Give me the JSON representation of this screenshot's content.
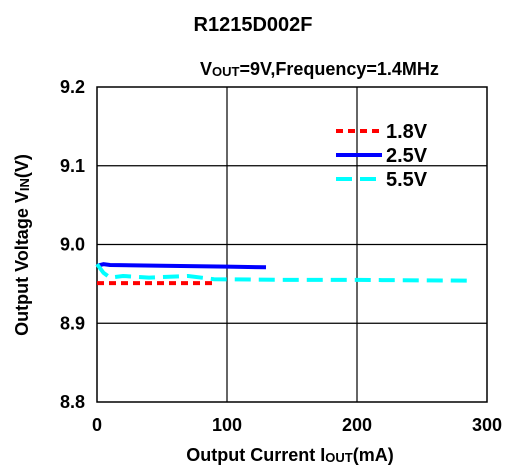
{
  "chart_data": {
    "type": "line",
    "title": "R1215D002F",
    "subtitle": {
      "v_main": "V",
      "v_sub": "OUT",
      "rest": "=9V,Frequency=1.4MHz"
    },
    "xlabel": {
      "prefix": "Output Current I",
      "sub": "OUT",
      "suffix": "(mA)"
    },
    "ylabel": {
      "prefix": "Output Voltage V",
      "sub": "IN",
      "suffix": "(V)"
    },
    "xlim": [
      0,
      300
    ],
    "ylim": [
      8.8,
      9.2
    ],
    "xticks": [
      "0",
      "100",
      "200",
      "300"
    ],
    "yticks": [
      "8.8",
      "8.9",
      "9.0",
      "9.1",
      "9.2"
    ],
    "grid": true,
    "legend_position": "top-right",
    "series": [
      {
        "name": "1.8V",
        "color": "#ff0000",
        "dash": "dotted",
        "x": [
          0,
          20,
          50,
          90
        ],
        "y": [
          8.951,
          8.951,
          8.951,
          8.951
        ]
      },
      {
        "name": "2.5V",
        "color": "#0000ff",
        "dash": "solid",
        "x": [
          0,
          5,
          10,
          50,
          100,
          130
        ],
        "y": [
          8.973,
          8.975,
          8.974,
          8.973,
          8.972,
          8.971
        ]
      },
      {
        "name": "5.5V",
        "color": "#00ffff",
        "dash": "dashed",
        "x": [
          0,
          5,
          10,
          20,
          40,
          70,
          90,
          150,
          200,
          290
        ],
        "y": [
          8.975,
          8.964,
          8.958,
          8.96,
          8.958,
          8.96,
          8.956,
          8.955,
          8.955,
          8.954
        ]
      }
    ]
  }
}
